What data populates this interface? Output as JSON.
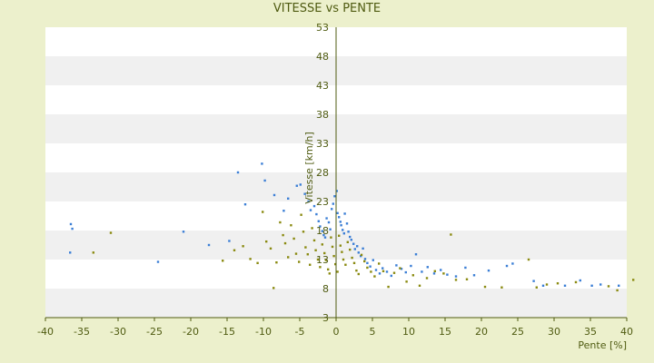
{
  "chart_data": {
    "type": "scatter",
    "title": "VITESSE vs PENTE",
    "xlabel": "Pente [%]",
    "ylabel": "Vitesse [km/h]",
    "xlim": [
      -40,
      40
    ],
    "ylim": [
      3,
      53
    ],
    "x_ticks": [
      -40,
      -35,
      -30,
      -25,
      -20,
      -15,
      -10,
      -5,
      0,
      5,
      10,
      15,
      20,
      25,
      30,
      35,
      40
    ],
    "y_ticks": [
      3,
      8,
      13,
      18,
      23,
      28,
      33,
      38,
      43,
      48,
      53
    ],
    "grid": "horizontal alternating bands",
    "colors": {
      "series_a": "#3c7fd6",
      "series_b": "#8a8a10",
      "axis": "#4f5b11",
      "band": "#f0f0f0",
      "plot_bg": "#ffffff"
    },
    "series": [
      {
        "color_key": "series_a",
        "points": [
          [
            -36.5,
            19.1
          ],
          [
            -36.3,
            18.3
          ],
          [
            -36.6,
            14.2
          ],
          [
            -24.5,
            12.6
          ],
          [
            -21.0,
            17.8
          ],
          [
            -17.5,
            15.5
          ],
          [
            -14.7,
            16.2
          ],
          [
            -13.5,
            28.0
          ],
          [
            -12.5,
            22.5
          ],
          [
            -10.2,
            29.5
          ],
          [
            -9.8,
            26.6
          ],
          [
            -8.5,
            24.1
          ],
          [
            -7.2,
            21.4
          ],
          [
            -6.6,
            23.5
          ],
          [
            -5.4,
            25.7
          ],
          [
            -4.9,
            25.9
          ],
          [
            -4.3,
            24.3
          ],
          [
            -3.8,
            23.0
          ],
          [
            -3.5,
            21.5
          ],
          [
            -3.0,
            22.2
          ],
          [
            -2.7,
            20.8
          ],
          [
            -2.4,
            19.6
          ],
          [
            -2.2,
            18.7
          ],
          [
            -1.9,
            17.9
          ],
          [
            -1.7,
            17.2
          ],
          [
            -1.5,
            16.8
          ],
          [
            -1.3,
            20.1
          ],
          [
            -1.0,
            19.4
          ],
          [
            -0.8,
            18.2
          ],
          [
            -0.6,
            21.7
          ],
          [
            -0.4,
            22.6
          ],
          [
            -0.2,
            23.9
          ],
          [
            0.1,
            24.8
          ],
          [
            0.2,
            21.0
          ],
          [
            0.4,
            20.3
          ],
          [
            0.6,
            19.5
          ],
          [
            0.7,
            18.9
          ],
          [
            0.9,
            18.1
          ],
          [
            1.1,
            17.5
          ],
          [
            1.2,
            20.9
          ],
          [
            1.5,
            19.2
          ],
          [
            1.7,
            17.8
          ],
          [
            1.9,
            16.9
          ],
          [
            2.1,
            16.4
          ],
          [
            2.4,
            15.7
          ],
          [
            2.6,
            14.8
          ],
          [
            2.9,
            15.3
          ],
          [
            3.1,
            14.2
          ],
          [
            3.4,
            13.6
          ],
          [
            3.7,
            14.9
          ],
          [
            4.0,
            13.1
          ],
          [
            4.3,
            12.4
          ],
          [
            4.7,
            11.8
          ],
          [
            5.1,
            12.9
          ],
          [
            5.5,
            11.2
          ],
          [
            6.0,
            10.6
          ],
          [
            6.4,
            11.5
          ],
          [
            7.0,
            10.9
          ],
          [
            7.6,
            10.2
          ],
          [
            8.3,
            12.0
          ],
          [
            9.0,
            11.4
          ],
          [
            9.6,
            10.8
          ],
          [
            10.3,
            11.9
          ],
          [
            11.0,
            13.9
          ],
          [
            11.8,
            10.9
          ],
          [
            12.6,
            11.7
          ],
          [
            13.5,
            10.6
          ],
          [
            14.4,
            11.2
          ],
          [
            15.3,
            10.4
          ],
          [
            16.5,
            10.1
          ],
          [
            17.8,
            11.6
          ],
          [
            19.0,
            10.3
          ],
          [
            21.0,
            11.1
          ],
          [
            23.5,
            11.9
          ],
          [
            24.3,
            12.3
          ],
          [
            27.2,
            9.3
          ],
          [
            28.5,
            8.5
          ],
          [
            31.5,
            8.5
          ],
          [
            33.6,
            9.4
          ],
          [
            35.2,
            8.5
          ],
          [
            36.4,
            8.7
          ],
          [
            38.9,
            8.5
          ]
        ]
      },
      {
        "color_key": "series_b",
        "points": [
          [
            -33.4,
            14.2
          ],
          [
            -31.0,
            17.6
          ],
          [
            -15.6,
            12.8
          ],
          [
            -14.0,
            14.6
          ],
          [
            -12.8,
            15.3
          ],
          [
            -11.8,
            13.1
          ],
          [
            -10.8,
            12.4
          ],
          [
            -10.1,
            21.2
          ],
          [
            -9.6,
            16.1
          ],
          [
            -9.0,
            14.9
          ],
          [
            -8.6,
            8.1
          ],
          [
            -8.2,
            12.5
          ],
          [
            -7.7,
            19.4
          ],
          [
            -7.3,
            17.2
          ],
          [
            -7.0,
            15.8
          ],
          [
            -6.6,
            13.4
          ],
          [
            -6.2,
            18.9
          ],
          [
            -5.8,
            16.6
          ],
          [
            -5.5,
            14.0
          ],
          [
            -5.1,
            12.6
          ],
          [
            -4.8,
            20.7
          ],
          [
            -4.5,
            17.8
          ],
          [
            -4.2,
            15.1
          ],
          [
            -3.9,
            13.9
          ],
          [
            -3.6,
            12.1
          ],
          [
            -3.3,
            18.4
          ],
          [
            -3.0,
            16.3
          ],
          [
            -2.8,
            14.6
          ],
          [
            -2.5,
            13.0
          ],
          [
            -2.2,
            11.7
          ],
          [
            -1.9,
            15.6
          ],
          [
            -1.6,
            14.1
          ],
          [
            -1.4,
            12.9
          ],
          [
            -1.1,
            11.3
          ],
          [
            -0.9,
            10.6
          ],
          [
            -0.7,
            16.8
          ],
          [
            -0.5,
            15.2
          ],
          [
            -0.3,
            13.6
          ],
          [
            -0.1,
            12.2
          ],
          [
            0.2,
            10.9
          ],
          [
            0.4,
            17.1
          ],
          [
            0.6,
            15.4
          ],
          [
            0.8,
            14.3
          ],
          [
            1.0,
            13.0
          ],
          [
            1.3,
            12.1
          ],
          [
            1.6,
            16.0
          ],
          [
            1.9,
            14.7
          ],
          [
            2.2,
            13.3
          ],
          [
            2.5,
            12.4
          ],
          [
            2.8,
            11.1
          ],
          [
            3.1,
            10.5
          ],
          [
            3.5,
            13.8
          ],
          [
            3.9,
            12.7
          ],
          [
            4.3,
            11.6
          ],
          [
            4.8,
            10.9
          ],
          [
            5.3,
            10.1
          ],
          [
            5.9,
            12.3
          ],
          [
            6.5,
            11.0
          ],
          [
            7.2,
            8.3
          ],
          [
            8.0,
            10.7
          ],
          [
            8.8,
            11.5
          ],
          [
            9.7,
            9.2
          ],
          [
            10.6,
            10.3
          ],
          [
            11.5,
            8.5
          ],
          [
            12.5,
            9.8
          ],
          [
            13.6,
            11.0
          ],
          [
            14.8,
            10.6
          ],
          [
            15.8,
            17.3
          ],
          [
            16.5,
            9.5
          ],
          [
            18.0,
            9.6
          ],
          [
            20.5,
            8.3
          ],
          [
            22.8,
            8.2
          ],
          [
            26.5,
            13.0
          ],
          [
            27.6,
            8.2
          ],
          [
            29.0,
            8.7
          ],
          [
            30.5,
            8.9
          ],
          [
            33.0,
            9.1
          ],
          [
            37.5,
            8.4
          ],
          [
            38.7,
            7.7
          ],
          [
            40.9,
            9.5
          ]
        ]
      }
    ]
  }
}
